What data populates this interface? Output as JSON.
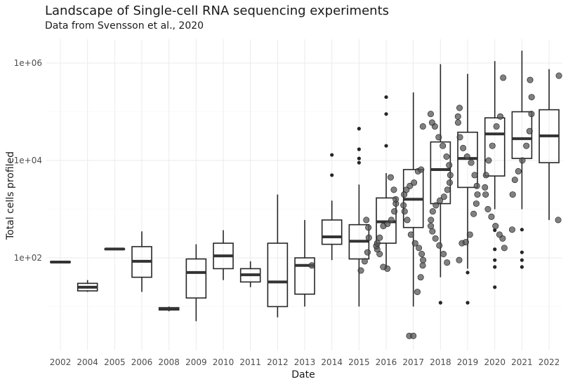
{
  "chart_data": {
    "type": "box",
    "title": "Landscape of Single-cell RNA sequencing experiments",
    "subtitle": "Data from Svensson et al., 2020",
    "xlabel": "Date",
    "ylabel": "Total cells profiled",
    "y_scale": "log10",
    "ylim": [
      4,
      3000000
    ],
    "y_ticks": [
      100,
      10000,
      1000000
    ],
    "y_tick_labels": [
      "1e+02",
      "1e+04",
      "1e+06"
    ],
    "grid": true,
    "categories": [
      "2002",
      "2004",
      "2005",
      "2006",
      "2008",
      "2009",
      "2010",
      "2011",
      "2012",
      "2013",
      "2014",
      "2015",
      "2016",
      "2017",
      "2018",
      "2019",
      "2020",
      "2021",
      "2022"
    ],
    "boxes": [
      {
        "year": "2002",
        "min": 80,
        "q1": 80,
        "median": 82,
        "q3": 84,
        "max": 84,
        "outliers": []
      },
      {
        "year": "2004",
        "min": 20,
        "q1": 21,
        "median": 25,
        "q3": 30,
        "max": 35,
        "outliers": []
      },
      {
        "year": "2005",
        "min": 148,
        "q1": 150,
        "median": 152,
        "q3": 154,
        "max": 156,
        "outliers": []
      },
      {
        "year": "2006",
        "min": 20,
        "q1": 40,
        "median": 85,
        "q3": 170,
        "max": 350,
        "outliers": []
      },
      {
        "year": "2008",
        "min": 8,
        "q1": 8.5,
        "median": 9,
        "q3": 9.5,
        "max": 10,
        "outliers": []
      },
      {
        "year": "2009",
        "min": 5,
        "q1": 15,
        "median": 50,
        "q3": 95,
        "max": 190,
        "outliers": []
      },
      {
        "year": "2010",
        "min": 35,
        "q1": 60,
        "median": 110,
        "q3": 200,
        "max": 370,
        "outliers": []
      },
      {
        "year": "2011",
        "min": 25,
        "q1": 32,
        "median": 45,
        "q3": 60,
        "max": 85,
        "outliers": []
      },
      {
        "year": "2012",
        "min": 6,
        "q1": 10,
        "median": 32,
        "q3": 200,
        "max": 2000,
        "outliers": []
      },
      {
        "year": "2013",
        "min": 10,
        "q1": 18,
        "median": 70,
        "q3": 100,
        "max": 600,
        "outliers": []
      },
      {
        "year": "2014",
        "min": 90,
        "q1": 190,
        "median": 270,
        "q3": 600,
        "max": 1500,
        "outliers": [
          5000,
          13000
        ]
      },
      {
        "year": "2015",
        "min": 10,
        "q1": 95,
        "median": 220,
        "q3": 480,
        "max": 3200,
        "outliers": [
          9000,
          11000,
          17000,
          45000
        ]
      },
      {
        "year": "2016",
        "min": 60,
        "q1": 200,
        "median": 550,
        "q3": 1700,
        "max": 5500,
        "outliers": [
          20000,
          90000,
          200000
        ]
      },
      {
        "year": "2017",
        "min": 10,
        "q1": 420,
        "median": 1600,
        "q3": 6500,
        "max": 250000,
        "outliers": []
      },
      {
        "year": "2018",
        "min": 40,
        "q1": 1300,
        "median": 6500,
        "q3": 24000,
        "max": 950000,
        "outliers": [
          12
        ]
      },
      {
        "year": "2019",
        "min": 60,
        "q1": 2800,
        "median": 11000,
        "q3": 38000,
        "max": 600000,
        "outliers": [
          12,
          50
        ]
      },
      {
        "year": "2020",
        "min": 1000,
        "q1": 4800,
        "median": 35000,
        "q3": 75000,
        "max": 1100000,
        "outliers": [
          25,
          65,
          90,
          150,
          370
        ]
      },
      {
        "year": "2021",
        "min": 1000,
        "q1": 11000,
        "median": 28000,
        "q3": 100000,
        "max": 1800000,
        "outliers": [
          65,
          90,
          130,
          380
        ]
      },
      {
        "year": "2022",
        "min": 600,
        "q1": 9000,
        "median": 32000,
        "q3": 110000,
        "max": 750000,
        "outliers": []
      }
    ],
    "points": [
      {
        "year": "2013",
        "values": [
          70
        ]
      },
      {
        "year": "2015",
        "values": [
          55,
          85,
          130,
          260,
          420,
          600
        ]
      },
      {
        "year": "2016",
        "values": [
          60,
          65,
          120,
          150,
          175,
          200,
          260,
          450,
          500,
          600,
          900,
          1300,
          1600,
          2500,
          4500
        ]
      },
      {
        "year": "2017",
        "values": [
          2.5,
          2.5,
          20,
          40,
          70,
          90,
          120,
          160,
          200,
          300,
          600,
          900,
          1200,
          2000,
          2500,
          3000,
          3500,
          6000,
          6500,
          50000
        ]
      },
      {
        "year": "2018",
        "values": [
          80,
          120,
          180,
          250,
          350,
          450,
          600,
          900,
          1200,
          1500,
          1800,
          2500,
          3500,
          5000,
          8000,
          12000,
          20000,
          30000,
          50000,
          60000,
          90000
        ]
      },
      {
        "year": "2019",
        "values": [
          90,
          200,
          210,
          300,
          800,
          1300,
          2000,
          3000,
          5000,
          9000,
          12000,
          18000,
          30000,
          60000,
          80000,
          120000
        ]
      },
      {
        "year": "2020",
        "values": [
          160,
          250,
          300,
          450,
          700,
          1000,
          2000,
          2800,
          5000,
          10000,
          20000,
          50000,
          80000,
          500000
        ]
      },
      {
        "year": "2021",
        "values": [
          380,
          2000,
          4000,
          6000,
          10000,
          20000,
          40000,
          90000,
          200000,
          450000
        ]
      },
      {
        "year": "2022",
        "values": [
          600,
          550000
        ]
      }
    ]
  },
  "colors": {
    "box_line": "#262626",
    "median": "#333333",
    "point_fill": "#555555",
    "point_stroke": "#1a1a1a",
    "outlier": "#262626"
  }
}
